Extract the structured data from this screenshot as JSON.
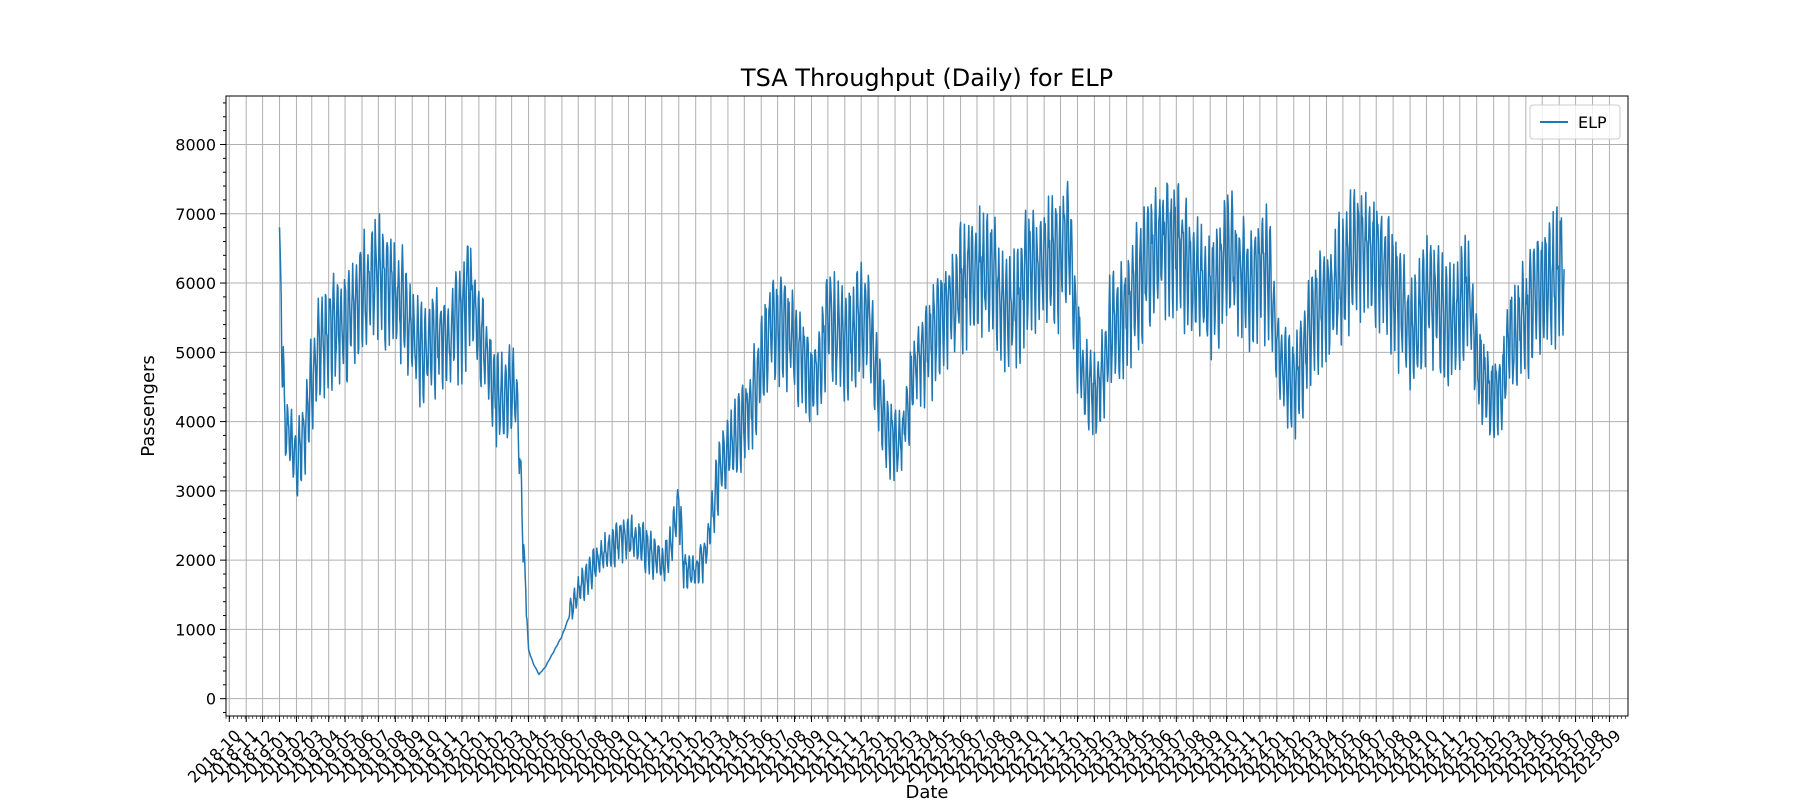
{
  "chart_data": {
    "type": "line",
    "title": "TSA Throughput (Daily) for ELP",
    "xlabel": "Date",
    "ylabel": "Passengers",
    "xlim": [
      "2018-09-25",
      "2025-10-05"
    ],
    "ylim": [
      -250,
      8700
    ],
    "y_ticks": [
      0,
      1000,
      2000,
      3000,
      4000,
      5000,
      6000,
      7000,
      8000
    ],
    "x_ticks": [
      "2018-10",
      "2018-11",
      "2018-12",
      "2019-01",
      "2019-02",
      "2019-03",
      "2019-04",
      "2019-05",
      "2019-06",
      "2019-07",
      "2019-08",
      "2019-09",
      "2019-10",
      "2019-11",
      "2019-12",
      "2020-01",
      "2020-02",
      "2020-03",
      "2020-04",
      "2020-05",
      "2020-06",
      "2020-07",
      "2020-08",
      "2020-09",
      "2020-10",
      "2020-11",
      "2020-12",
      "2021-01",
      "2021-02",
      "2021-03",
      "2021-04",
      "2021-05",
      "2021-06",
      "2021-07",
      "2021-08",
      "2021-09",
      "2021-10",
      "2021-11",
      "2021-12",
      "2022-01",
      "2022-02",
      "2022-03",
      "2022-04",
      "2022-05",
      "2022-06",
      "2022-07",
      "2022-08",
      "2022-09",
      "2022-10",
      "2022-11",
      "2022-12",
      "2023-01",
      "2023-02",
      "2023-03",
      "2023-04",
      "2023-05",
      "2023-06",
      "2023-07",
      "2023-08",
      "2023-09",
      "2023-10",
      "2023-11",
      "2023-12",
      "2024-01",
      "2024-02",
      "2024-03",
      "2024-04",
      "2024-05",
      "2024-06",
      "2024-07",
      "2024-08",
      "2024-09",
      "2024-10",
      "2024-11",
      "2024-12",
      "2025-01",
      "2025-02",
      "2025-03",
      "2025-04",
      "2025-05",
      "2025-06",
      "2025-07",
      "2025-08",
      "2025-09"
    ],
    "grid": true,
    "legend_position": "top-right",
    "series": [
      {
        "name": "ELP",
        "color": "#1f77b4",
        "points": [
          [
            "2019-01-01",
            6050
          ],
          [
            "2019-01-05",
            5200
          ],
          [
            "2019-01-10",
            3900
          ],
          [
            "2019-01-20",
            3700
          ],
          [
            "2019-02-01",
            3300
          ],
          [
            "2019-02-15",
            3700
          ],
          [
            "2019-03-01",
            4500
          ],
          [
            "2019-03-15",
            5000
          ],
          [
            "2019-04-01",
            5100
          ],
          [
            "2019-04-15",
            5300
          ],
          [
            "2019-05-01",
            5200
          ],
          [
            "2019-05-15",
            5500
          ],
          [
            "2019-06-01",
            5700
          ],
          [
            "2019-06-15",
            5900
          ],
          [
            "2019-07-01",
            6000
          ],
          [
            "2019-07-15",
            5900
          ],
          [
            "2019-08-01",
            5700
          ],
          [
            "2019-08-15",
            5500
          ],
          [
            "2019-09-01",
            5100
          ],
          [
            "2019-09-15",
            4900
          ],
          [
            "2019-10-01",
            5000
          ],
          [
            "2019-10-15",
            5100
          ],
          [
            "2019-11-01",
            5000
          ],
          [
            "2019-11-15",
            5200
          ],
          [
            "2019-12-01",
            5400
          ],
          [
            "2019-12-15",
            5800
          ],
          [
            "2020-01-01",
            5300
          ],
          [
            "2020-01-15",
            4900
          ],
          [
            "2020-02-01",
            4300
          ],
          [
            "2020-02-15",
            4200
          ],
          [
            "2020-03-01",
            4400
          ],
          [
            "2020-03-10",
            4200
          ],
          [
            "2020-03-18",
            3000
          ],
          [
            "2020-03-25",
            1800
          ],
          [
            "2020-04-01",
            700
          ],
          [
            "2020-04-10",
            500
          ],
          [
            "2020-04-20",
            350
          ],
          [
            "2020-05-01",
            450
          ],
          [
            "2020-05-15",
            650
          ],
          [
            "2020-06-01",
            900
          ],
          [
            "2020-06-15",
            1200
          ],
          [
            "2020-07-01",
            1500
          ],
          [
            "2020-07-15",
            1700
          ],
          [
            "2020-08-01",
            1900
          ],
          [
            "2020-08-15",
            2000
          ],
          [
            "2020-09-01",
            2100
          ],
          [
            "2020-09-15",
            2250
          ],
          [
            "2020-10-01",
            2300
          ],
          [
            "2020-10-15",
            2200
          ],
          [
            "2020-11-01",
            2150
          ],
          [
            "2020-11-15",
            2000
          ],
          [
            "2020-12-01",
            1900
          ],
          [
            "2020-12-15",
            2100
          ],
          [
            "2021-01-01",
            2800
          ],
          [
            "2021-01-10",
            1900
          ],
          [
            "2021-01-20",
            1800
          ],
          [
            "2021-02-01",
            1800
          ],
          [
            "2021-02-15",
            2000
          ],
          [
            "2021-03-01",
            2500
          ],
          [
            "2021-03-15",
            3200
          ],
          [
            "2021-04-01",
            3500
          ],
          [
            "2021-04-15",
            3700
          ],
          [
            "2021-05-01",
            3900
          ],
          [
            "2021-05-15",
            4200
          ],
          [
            "2021-06-01",
            4800
          ],
          [
            "2021-06-15",
            5100
          ],
          [
            "2021-07-01",
            5300
          ],
          [
            "2021-07-15",
            5200
          ],
          [
            "2021-08-01",
            5000
          ],
          [
            "2021-08-15",
            4800
          ],
          [
            "2021-09-01",
            4500
          ],
          [
            "2021-09-15",
            4600
          ],
          [
            "2021-10-01",
            5400
          ],
          [
            "2021-10-15",
            5200
          ],
          [
            "2021-11-01",
            5000
          ],
          [
            "2021-11-15",
            5200
          ],
          [
            "2021-12-01",
            5400
          ],
          [
            "2021-12-15",
            5300
          ],
          [
            "2022-01-01",
            4400
          ],
          [
            "2022-01-15",
            3800
          ],
          [
            "2022-02-01",
            3600
          ],
          [
            "2022-02-15",
            3700
          ],
          [
            "2022-03-01",
            4400
          ],
          [
            "2022-03-15",
            4800
          ],
          [
            "2022-04-01",
            5000
          ],
          [
            "2022-04-15",
            5200
          ],
          [
            "2022-05-01",
            5400
          ],
          [
            "2022-05-15",
            5600
          ],
          [
            "2022-06-01",
            5900
          ],
          [
            "2022-06-15",
            6000
          ],
          [
            "2022-07-01",
            6100
          ],
          [
            "2022-07-15",
            6000
          ],
          [
            "2022-08-01",
            5900
          ],
          [
            "2022-08-15",
            5600
          ],
          [
            "2022-09-01",
            5500
          ],
          [
            "2022-09-15",
            5600
          ],
          [
            "2022-10-01",
            6100
          ],
          [
            "2022-10-15",
            6000
          ],
          [
            "2022-11-01",
            6100
          ],
          [
            "2022-11-15",
            6200
          ],
          [
            "2022-12-01",
            6300
          ],
          [
            "2022-12-15",
            6500
          ],
          [
            "2023-01-01",
            5000
          ],
          [
            "2023-01-15",
            4500
          ],
          [
            "2023-02-01",
            4300
          ],
          [
            "2023-02-15",
            4500
          ],
          [
            "2023-03-01",
            5200
          ],
          [
            "2023-03-15",
            5300
          ],
          [
            "2023-04-01",
            5500
          ],
          [
            "2023-04-15",
            5800
          ],
          [
            "2023-05-01",
            6000
          ],
          [
            "2023-05-15",
            6200
          ],
          [
            "2023-06-01",
            6400
          ],
          [
            "2023-06-15",
            6500
          ],
          [
            "2023-07-01",
            6400
          ],
          [
            "2023-07-15",
            6300
          ],
          [
            "2023-08-01",
            6000
          ],
          [
            "2023-08-15",
            5800
          ],
          [
            "2023-09-01",
            5700
          ],
          [
            "2023-09-15",
            5900
          ],
          [
            "2023-10-01",
            6300
          ],
          [
            "2023-10-15",
            6200
          ],
          [
            "2023-11-01",
            6000
          ],
          [
            "2023-11-15",
            5900
          ],
          [
            "2023-12-01",
            6000
          ],
          [
            "2023-12-15",
            6100
          ],
          [
            "2024-01-01",
            5000
          ],
          [
            "2024-01-15",
            4600
          ],
          [
            "2024-02-01",
            4400
          ],
          [
            "2024-02-15",
            4700
          ],
          [
            "2024-03-01",
            5300
          ],
          [
            "2024-03-15",
            5500
          ],
          [
            "2024-04-01",
            5600
          ],
          [
            "2024-04-15",
            5800
          ],
          [
            "2024-05-01",
            6000
          ],
          [
            "2024-05-15",
            6200
          ],
          [
            "2024-06-01",
            6300
          ],
          [
            "2024-06-15",
            6400
          ],
          [
            "2024-07-01",
            6300
          ],
          [
            "2024-07-15",
            6100
          ],
          [
            "2024-08-01",
            5800
          ],
          [
            "2024-08-15",
            5500
          ],
          [
            "2024-09-01",
            5200
          ],
          [
            "2024-09-15",
            5300
          ],
          [
            "2024-10-01",
            5700
          ],
          [
            "2024-10-15",
            5600
          ],
          [
            "2024-11-01",
            5400
          ],
          [
            "2024-11-15",
            5300
          ],
          [
            "2024-12-01",
            5500
          ],
          [
            "2024-12-15",
            5800
          ],
          [
            "2025-01-01",
            4800
          ],
          [
            "2025-01-15",
            4400
          ],
          [
            "2025-02-01",
            4200
          ],
          [
            "2025-02-15",
            4400
          ],
          [
            "2025-03-01",
            5000
          ],
          [
            "2025-03-15",
            5200
          ],
          [
            "2025-04-01",
            5400
          ],
          [
            "2025-04-15",
            5600
          ],
          [
            "2025-05-01",
            5800
          ],
          [
            "2025-05-15",
            5900
          ],
          [
            "2025-06-01",
            6000
          ],
          [
            "2025-06-10",
            6200
          ]
        ]
      }
    ]
  }
}
